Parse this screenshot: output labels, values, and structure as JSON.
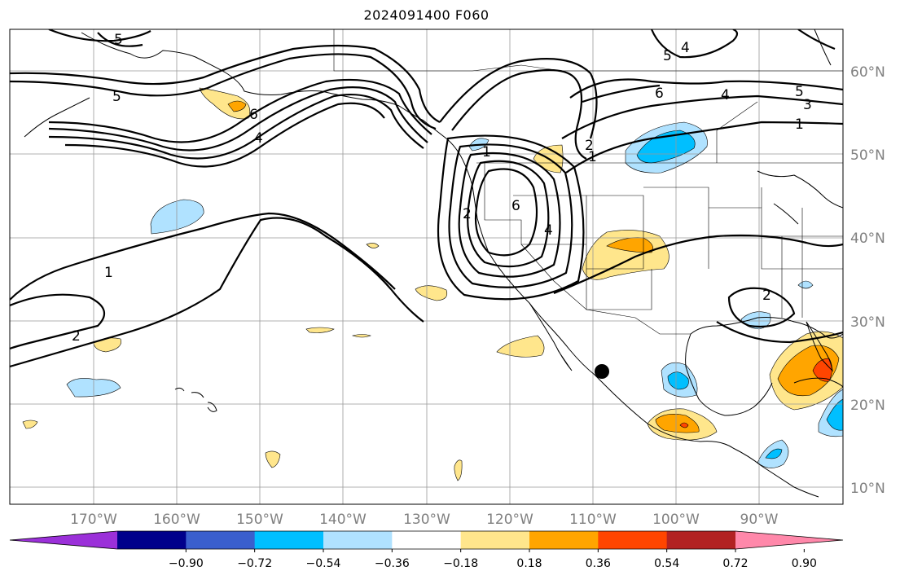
{
  "title": "2024091400 F060",
  "map": {
    "lat_labels": [
      "60°N",
      "50°N",
      "40°N",
      "30°N",
      "20°N",
      "10°N"
    ],
    "lon_labels": [
      "170°W",
      "160°W",
      "150°W",
      "140°W",
      "130°W",
      "120°W",
      "110°W",
      "100°W",
      "90°W"
    ],
    "grid_color": "#999999",
    "contour_labels": [
      "5",
      "5",
      "6",
      "4",
      "1",
      "2",
      "5",
      "4",
      "6",
      "4",
      "5",
      "3",
      "1",
      "2",
      "1",
      "6",
      "4",
      "2",
      "1",
      "2"
    ],
    "marker": "black-dot"
  },
  "colorbar": {
    "tick_labels": [
      "−0.90",
      "−0.72",
      "−0.54",
      "−0.36",
      "−0.18",
      "0.18",
      "0.36",
      "0.54",
      "0.72",
      "0.90"
    ],
    "colors": [
      "#9b30d9",
      "#00008b",
      "#3a5fcd",
      "#00bfff",
      "#b0e2ff",
      "#ffffff",
      "#ffe68c",
      "#ffa500",
      "#ff4500",
      "#b22222",
      "#ff88aa"
    ]
  }
}
